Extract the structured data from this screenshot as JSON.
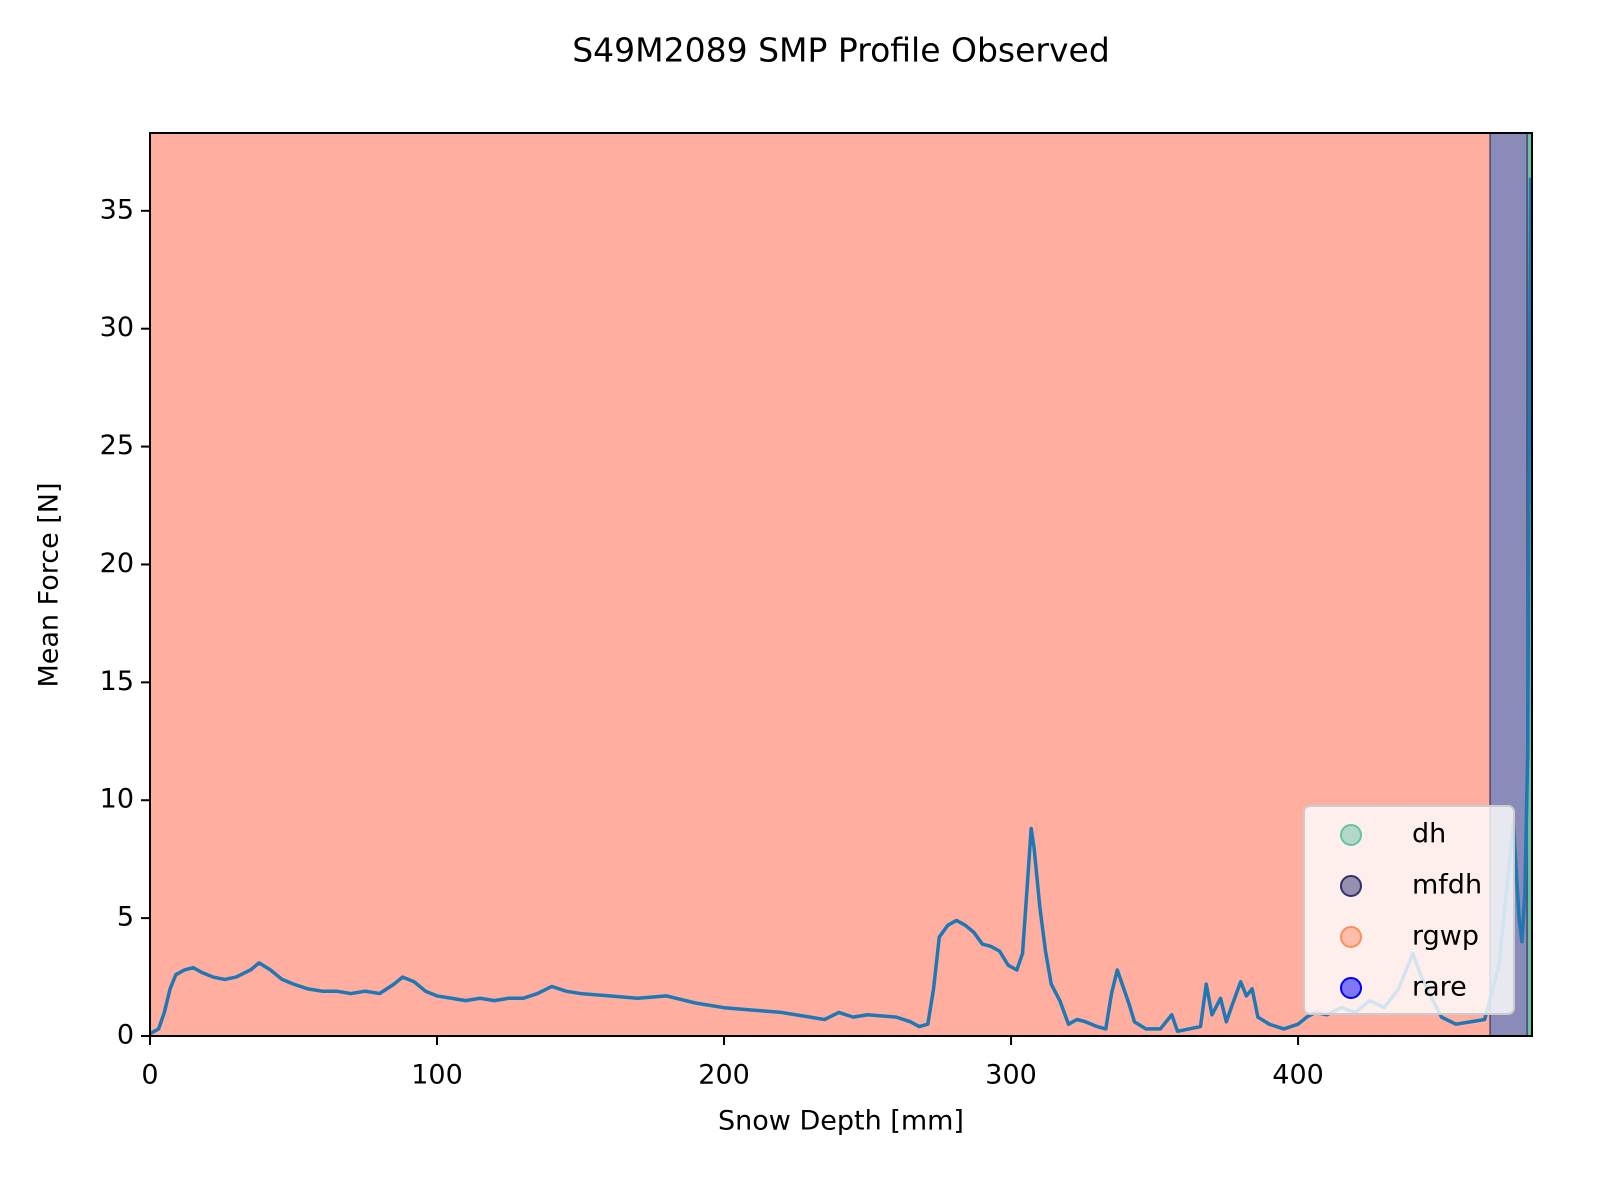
{
  "chart_data": {
    "type": "line",
    "title": "S49M2089 SMP Profile Observed",
    "x_label": "Snow Depth [mm]",
    "y_label": "Mean Force [N]",
    "xlim": [
      0,
      481.5
    ],
    "ylim": [
      0,
      38.3
    ],
    "xticks": [
      0,
      100,
      200,
      300,
      400
    ],
    "yticks": [
      0,
      5,
      10,
      15,
      20,
      25,
      30,
      35
    ],
    "x": [
      0,
      3,
      5,
      7,
      9,
      12,
      15,
      18,
      22,
      26,
      30,
      35,
      38,
      42,
      46,
      50,
      55,
      60,
      65,
      70,
      75,
      80,
      85,
      88,
      92,
      96,
      100,
      105,
      110,
      115,
      120,
      125,
      130,
      135,
      140,
      145,
      150,
      160,
      170,
      180,
      190,
      200,
      210,
      220,
      230,
      235,
      240,
      245,
      250,
      260,
      265,
      268,
      271,
      273,
      275,
      278,
      281,
      284,
      287,
      290,
      293,
      296,
      299,
      302,
      304,
      306,
      307,
      308,
      310,
      312,
      314,
      317,
      320,
      323,
      326,
      330,
      333,
      335,
      337,
      339,
      341,
      343,
      347,
      352,
      356,
      358,
      362,
      366,
      368,
      370,
      373,
      375,
      377,
      380,
      382,
      384,
      386,
      390,
      395,
      400,
      403,
      406,
      410,
      415,
      420,
      425,
      430,
      435,
      440,
      443,
      447,
      450,
      455,
      460,
      465,
      470,
      475,
      477,
      478,
      479,
      480,
      481
    ],
    "series": [
      {
        "color": "#1f77b4",
        "values": [
          0.1,
          0.3,
          1.0,
          2.0,
          2.6,
          2.8,
          2.9,
          2.7,
          2.5,
          2.4,
          2.5,
          2.8,
          3.1,
          2.8,
          2.4,
          2.2,
          2.0,
          1.9,
          1.9,
          1.8,
          1.9,
          1.8,
          2.2,
          2.5,
          2.3,
          1.9,
          1.7,
          1.6,
          1.5,
          1.6,
          1.5,
          1.6,
          1.6,
          1.8,
          2.1,
          1.9,
          1.8,
          1.7,
          1.6,
          1.7,
          1.4,
          1.2,
          1.1,
          1.0,
          0.8,
          0.7,
          1.0,
          0.8,
          0.9,
          0.8,
          0.6,
          0.4,
          0.5,
          2.0,
          4.2,
          4.7,
          4.9,
          4.7,
          4.4,
          3.9,
          3.8,
          3.6,
          3.0,
          2.8,
          3.5,
          7.0,
          8.8,
          8.0,
          5.5,
          3.6,
          2.2,
          1.5,
          0.5,
          0.7,
          0.6,
          0.4,
          0.3,
          1.8,
          2.8,
          2.1,
          1.4,
          0.6,
          0.3,
          0.3,
          0.9,
          0.2,
          0.3,
          0.4,
          2.2,
          0.9,
          1.6,
          0.6,
          1.3,
          2.3,
          1.7,
          2.0,
          0.8,
          0.5,
          0.3,
          0.5,
          0.8,
          1.0,
          0.9,
          1.2,
          1.0,
          1.5,
          1.2,
          2.0,
          3.5,
          2.5,
          1.5,
          0.8,
          0.5,
          0.6,
          0.7,
          3.0,
          9.0,
          5.0,
          4.0,
          6.0,
          12.0,
          36.4
        ]
      }
    ],
    "spans": [
      {
        "start": 0,
        "end": 466.9,
        "color": "#ffaea0"
      },
      {
        "start": 466.9,
        "end": 479.8,
        "color": "#8b8bb9"
      },
      {
        "start": 479.8,
        "end": 481.5,
        "color": "#66c2a5"
      }
    ],
    "legend_position": "lower right",
    "legend": [
      {
        "name": "dh",
        "color": "#66c2a5"
      },
      {
        "name": "mfdh",
        "color": "#2f2f6f"
      },
      {
        "name": "rgwp",
        "color": "#fc8d62"
      },
      {
        "name": "rare",
        "color": "#0000ff"
      }
    ]
  }
}
